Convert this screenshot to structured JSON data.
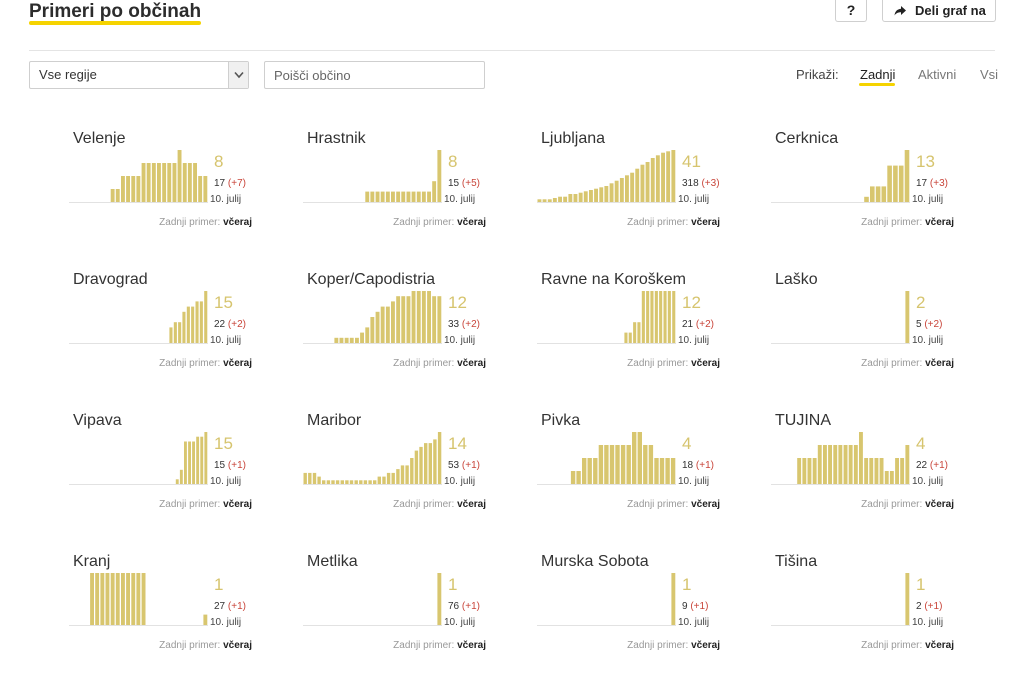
{
  "header": {
    "title": "Primeri po občinah",
    "help_label": "?",
    "share_label": "Deli graf na"
  },
  "filters": {
    "region_value": "Vse regije",
    "search_placeholder": "Poišči občino",
    "view_label": "Prikaži:",
    "view_options": [
      "Zadnji",
      "Aktivni",
      "Vsi"
    ],
    "view_selected": "Zadnji"
  },
  "colors": {
    "accent": "#f5d300",
    "bar": "#d8c66f",
    "delta": "#c9453a"
  },
  "last_case_label": "Zadnji primer:",
  "last_case_value": "včeraj",
  "municipalities": [
    {
      "name": "Velenje",
      "active": "8",
      "total": "17",
      "delta": "(+7)",
      "date": "10. julij",
      "bars": [
        0,
        0,
        0,
        0,
        0,
        0,
        0,
        0,
        1,
        1,
        2,
        2,
        2,
        2,
        3,
        3,
        3,
        3,
        3,
        3,
        3,
        4,
        3,
        3,
        3,
        2,
        2
      ]
    },
    {
      "name": "Hrastnik",
      "active": "8",
      "total": "15",
      "delta": "(+5)",
      "date": "10. julij",
      "bars": [
        0,
        0,
        0,
        0,
        0,
        0,
        0,
        0,
        0,
        0,
        0,
        0,
        1,
        1,
        1,
        1,
        1,
        1,
        1,
        1,
        1,
        1,
        1,
        1,
        1,
        2,
        5
      ]
    },
    {
      "name": "Ljubljana",
      "active": "41",
      "total": "318",
      "delta": "(+3)",
      "date": "10. julij",
      "bars": [
        2,
        2,
        2,
        3,
        4,
        4,
        6,
        6,
        7,
        8,
        9,
        10,
        11,
        12,
        14,
        16,
        18,
        20,
        22,
        25,
        28,
        30,
        33,
        35,
        37,
        38,
        39
      ]
    },
    {
      "name": "Cerknica",
      "active": "13",
      "total": "17",
      "delta": "(+3)",
      "date": "10. julij",
      "bars": [
        0,
        0,
        0,
        0,
        0,
        0,
        0,
        0,
        0,
        0,
        0,
        0,
        0,
        0,
        0,
        0,
        1,
        3,
        3,
        3,
        7,
        7,
        7,
        10
      ]
    },
    {
      "name": "Dravograd",
      "active": "15",
      "total": "22",
      "delta": "(+2)",
      "date": "10. julij",
      "bars": [
        0,
        0,
        0,
        0,
        0,
        0,
        0,
        0,
        0,
        0,
        0,
        0,
        0,
        0,
        0,
        0,
        0,
        0,
        0,
        0,
        0,
        0,
        0,
        3,
        4,
        4,
        6,
        7,
        7,
        8,
        8,
        10
      ]
    },
    {
      "name": "Koper/Capodistria",
      "active": "12",
      "total": "33",
      "delta": "(+2)",
      "date": "10. julij",
      "bars": [
        0,
        0,
        0,
        0,
        0,
        0,
        1,
        1,
        1,
        1,
        1,
        2,
        3,
        5,
        6,
        7,
        7,
        8,
        9,
        9,
        9,
        10,
        10,
        10,
        10,
        9,
        9
      ]
    },
    {
      "name": "Ravne na Koroškem",
      "active": "12",
      "total": "21",
      "delta": "(+2)",
      "date": "10. julij",
      "bars": [
        0,
        0,
        0,
        0,
        0,
        0,
        0,
        0,
        0,
        0,
        0,
        0,
        0,
        0,
        0,
        0,
        0,
        0,
        0,
        0,
        1,
        1,
        2,
        2,
        5,
        5,
        5,
        5,
        5,
        5,
        5,
        5
      ]
    },
    {
      "name": "Laško",
      "active": "2",
      "total": "5",
      "delta": "(+2)",
      "date": "10. julij",
      "bars": [
        0,
        0,
        0,
        0,
        0,
        0,
        0,
        0,
        0,
        0,
        0,
        0,
        0,
        0,
        0,
        0,
        0,
        0,
        0,
        0,
        0,
        0,
        0,
        0,
        0,
        0,
        2
      ]
    },
    {
      "name": "Vipava",
      "active": "15",
      "total": "15",
      "delta": "(+1)",
      "date": "10. julij",
      "bars": [
        0,
        0,
        0,
        0,
        0,
        0,
        0,
        0,
        0,
        0,
        0,
        0,
        0,
        0,
        0,
        0,
        0,
        0,
        0,
        0,
        0,
        0,
        0,
        0,
        0,
        0,
        1,
        3,
        9,
        9,
        9,
        10,
        10,
        11
      ]
    },
    {
      "name": "Maribor",
      "active": "14",
      "total": "53",
      "delta": "(+1)",
      "date": "10. julij",
      "bars": [
        3,
        3,
        3,
        2,
        1,
        1,
        1,
        1,
        1,
        1,
        1,
        1,
        1,
        1,
        1,
        1,
        2,
        2,
        3,
        3,
        4,
        5,
        5,
        7,
        9,
        10,
        11,
        11,
        12,
        14
      ]
    },
    {
      "name": "Pivka",
      "active": "4",
      "total": "18",
      "delta": "(+1)",
      "date": "10. julij",
      "bars": [
        0,
        0,
        0,
        0,
        0,
        0,
        1,
        1,
        2,
        2,
        2,
        3,
        3,
        3,
        3,
        3,
        3,
        4,
        4,
        3,
        3,
        2,
        2,
        2,
        2
      ]
    },
    {
      "name": "TUJINA",
      "active": "4",
      "total": "22",
      "delta": "(+1)",
      "date": "10. julij",
      "bars": [
        0,
        0,
        0,
        0,
        0,
        2,
        2,
        2,
        2,
        3,
        3,
        3,
        3,
        3,
        3,
        3,
        3,
        4,
        2,
        2,
        2,
        2,
        1,
        1,
        2,
        2,
        3
      ]
    },
    {
      "name": "Kranj",
      "active": "1",
      "total": "27",
      "delta": "(+1)",
      "date": "10. julij",
      "bars": [
        0,
        0,
        0,
        0,
        5,
        5,
        5,
        5,
        5,
        5,
        5,
        5,
        5,
        5,
        5,
        0,
        0,
        0,
        0,
        0,
        0,
        0,
        0,
        0,
        0,
        0,
        1
      ]
    },
    {
      "name": "Metlika",
      "active": "1",
      "total": "76",
      "delta": "(+1)",
      "date": "10. julij",
      "bars": [
        0,
        0,
        0,
        0,
        0,
        0,
        0,
        0,
        0,
        0,
        0,
        0,
        0,
        0,
        0,
        0,
        0,
        0,
        0,
        0,
        0,
        0,
        0,
        0,
        0,
        0,
        1
      ]
    },
    {
      "name": "Murska Sobota",
      "active": "1",
      "total": "9",
      "delta": "(+1)",
      "date": "10. julij",
      "bars": [
        0,
        0,
        0,
        0,
        0,
        0,
        0,
        0,
        0,
        0,
        0,
        0,
        0,
        0,
        0,
        0,
        0,
        0,
        0,
        0,
        0,
        0,
        0,
        0,
        0,
        0,
        1
      ]
    },
    {
      "name": "Tišina",
      "active": "1",
      "total": "2",
      "delta": "(+1)",
      "date": "10. julij",
      "bars": [
        0,
        0,
        0,
        0,
        0,
        0,
        0,
        0,
        0,
        0,
        0,
        0,
        0,
        0,
        0,
        0,
        0,
        0,
        0,
        0,
        0,
        0,
        0,
        0,
        0,
        0,
        1
      ]
    }
  ]
}
